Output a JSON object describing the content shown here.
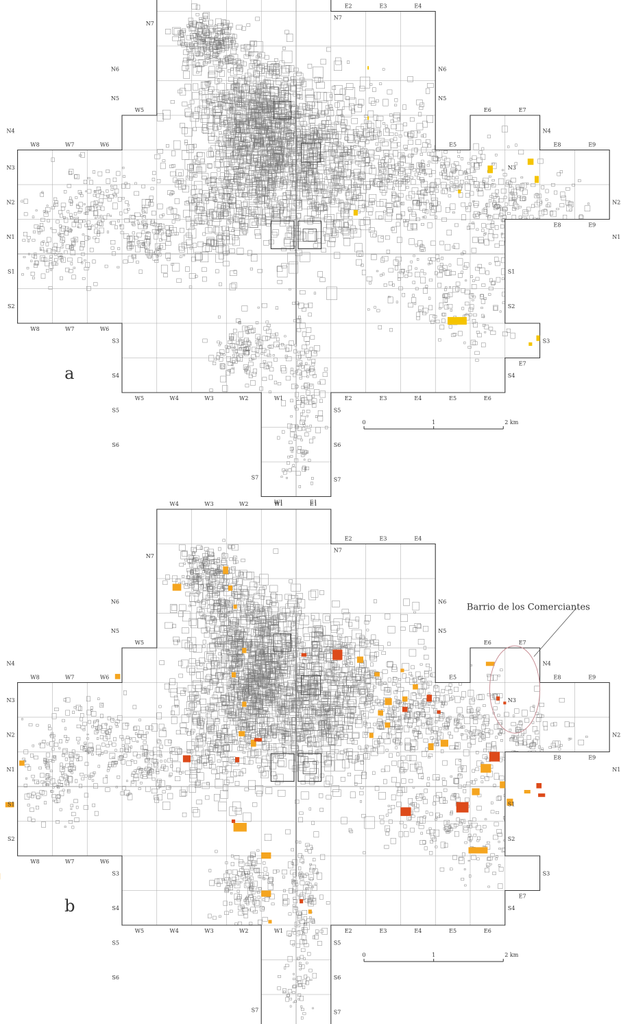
{
  "panels": [
    {
      "id": "a",
      "letter": "a",
      "sites": [
        {
          "x": 2.05,
          "y": 5.42,
          "w": 0.04,
          "h": 0.1,
          "color": "yellow"
        },
        {
          "x": 2.05,
          "y": 3.97,
          "w": 0.04,
          "h": 0.1,
          "color": "yellow"
        },
        {
          "x": 1.65,
          "y": 1.27,
          "w": 0.12,
          "h": 0.16,
          "color": "yellow"
        },
        {
          "x": 5.5,
          "y": 2.55,
          "w": 0.15,
          "h": 0.22,
          "color": "yellow"
        },
        {
          "x": 6.85,
          "y": 2.25,
          "w": 0.12,
          "h": 0.2,
          "color": "yellow"
        },
        {
          "x": 6.65,
          "y": 2.75,
          "w": 0.17,
          "h": 0.18,
          "color": "yellow"
        },
        {
          "x": 4.65,
          "y": 1.85,
          "w": 0.08,
          "h": 0.1,
          "color": "yellow"
        },
        {
          "x": 4.35,
          "y": -1.82,
          "w": 0.55,
          "h": 0.22,
          "color": "yellow"
        },
        {
          "x": 6.9,
          "y": -2.35,
          "w": 0.1,
          "h": 0.16,
          "color": "yellow"
        },
        {
          "x": 6.68,
          "y": -2.55,
          "w": 0.1,
          "h": 0.1,
          "color": "yellow"
        }
      ]
    },
    {
      "id": "b",
      "letter": "b",
      "sites": [
        {
          "x": -8.75,
          "y": -2.5,
          "w": 0.25,
          "h": 0.18,
          "color": "orange"
        },
        {
          "x": -8.35,
          "y": -0.45,
          "w": 0.25,
          "h": 0.15,
          "color": "orange"
        },
        {
          "x": -7.95,
          "y": 0.75,
          "w": 0.15,
          "h": 0.15,
          "color": "orange"
        },
        {
          "x": -5.2,
          "y": 3.25,
          "w": 0.15,
          "h": 0.15,
          "color": "orange"
        },
        {
          "x": -3.55,
          "y": 5.85,
          "w": 0.25,
          "h": 0.2,
          "color": "orange"
        },
        {
          "x": -2.1,
          "y": 6.35,
          "w": 0.15,
          "h": 0.22,
          "color": "orange"
        },
        {
          "x": -1.95,
          "y": 5.8,
          "w": 0.12,
          "h": 0.15,
          "color": "orange"
        },
        {
          "x": -1.8,
          "y": 5.25,
          "w": 0.1,
          "h": 0.12,
          "color": "orange"
        },
        {
          "x": -1.55,
          "y": 4.0,
          "w": 0.12,
          "h": 0.15,
          "color": "orange"
        },
        {
          "x": -1.85,
          "y": 3.3,
          "w": 0.12,
          "h": 0.15,
          "color": "orange"
        },
        {
          "x": -1.55,
          "y": 2.45,
          "w": 0.12,
          "h": 0.15,
          "color": "orange"
        },
        {
          "x": -1.65,
          "y": 1.6,
          "w": 0.18,
          "h": 0.15,
          "color": "orange"
        },
        {
          "x": -1.3,
          "y": 1.35,
          "w": 0.15,
          "h": 0.2,
          "color": "orange"
        },
        {
          "x": -3.25,
          "y": 0.9,
          "w": 0.22,
          "h": 0.2,
          "color": "red"
        },
        {
          "x": -1.75,
          "y": 0.85,
          "w": 0.12,
          "h": 0.15,
          "color": "red"
        },
        {
          "x": -1.2,
          "y": 1.4,
          "w": 0.22,
          "h": 0.1,
          "color": "red"
        },
        {
          "x": -1.8,
          "y": -1.05,
          "w": 0.38,
          "h": 0.25,
          "color": "orange"
        },
        {
          "x": -1.85,
          "y": -0.95,
          "w": 0.1,
          "h": 0.1,
          "color": "red"
        },
        {
          "x": -1.0,
          "y": -1.9,
          "w": 0.28,
          "h": 0.18,
          "color": "orange"
        },
        {
          "x": -1.0,
          "y": -3.0,
          "w": 0.28,
          "h": 0.18,
          "color": "orange"
        },
        {
          "x": 0.1,
          "y": -3.25,
          "w": 0.1,
          "h": 0.12,
          "color": "red"
        },
        {
          "x": 0.35,
          "y": -3.55,
          "w": 0.1,
          "h": 0.12,
          "color": "orange"
        },
        {
          "x": -0.8,
          "y": -3.85,
          "w": 0.1,
          "h": 0.1,
          "color": "orange"
        },
        {
          "x": 1.05,
          "y": 3.95,
          "w": 0.28,
          "h": 0.3,
          "color": "red"
        },
        {
          "x": 0.15,
          "y": 3.85,
          "w": 0.15,
          "h": 0.1,
          "color": "red"
        },
        {
          "x": 1.75,
          "y": 3.75,
          "w": 0.18,
          "h": 0.18,
          "color": "orange"
        },
        {
          "x": 2.25,
          "y": 3.3,
          "w": 0.15,
          "h": 0.12,
          "color": "orange"
        },
        {
          "x": 2.55,
          "y": 2.55,
          "w": 0.2,
          "h": 0.2,
          "color": "orange"
        },
        {
          "x": 2.35,
          "y": 2.2,
          "w": 0.15,
          "h": 0.15,
          "color": "orange"
        },
        {
          "x": 2.55,
          "y": 1.85,
          "w": 0.15,
          "h": 0.15,
          "color": "orange"
        },
        {
          "x": 2.1,
          "y": 1.55,
          "w": 0.12,
          "h": 0.15,
          "color": "orange"
        },
        {
          "x": 3.0,
          "y": 3.4,
          "w": 0.1,
          "h": 0.1,
          "color": "orange"
        },
        {
          "x": 3.05,
          "y": 2.6,
          "w": 0.15,
          "h": 0.15,
          "color": "orange"
        },
        {
          "x": 3.05,
          "y": 2.3,
          "w": 0.15,
          "h": 0.15,
          "color": "red"
        },
        {
          "x": 3.35,
          "y": 2.95,
          "w": 0.15,
          "h": 0.15,
          "color": "orange"
        },
        {
          "x": 3.75,
          "y": 2.65,
          "w": 0.15,
          "h": 0.2,
          "color": "red"
        },
        {
          "x": 4.05,
          "y": 2.2,
          "w": 0.1,
          "h": 0.1,
          "color": "red"
        },
        {
          "x": 4.15,
          "y": 1.35,
          "w": 0.22,
          "h": 0.2,
          "color": "orange"
        },
        {
          "x": 3.8,
          "y": 1.25,
          "w": 0.15,
          "h": 0.2,
          "color": "orange"
        },
        {
          "x": 4.6,
          "y": -0.45,
          "w": 0.35,
          "h": 0.3,
          "color": "red"
        },
        {
          "x": 5.05,
          "y": -0.05,
          "w": 0.22,
          "h": 0.2,
          "color": "orange"
        },
        {
          "x": 3.0,
          "y": -0.6,
          "w": 0.3,
          "h": 0.25,
          "color": "red"
        },
        {
          "x": 4.95,
          "y": -1.75,
          "w": 0.55,
          "h": 0.18,
          "color": "orange"
        },
        {
          "x": 5.3,
          "y": 0.65,
          "w": 0.3,
          "h": 0.25,
          "color": "orange"
        },
        {
          "x": 5.55,
          "y": 1.0,
          "w": 0.3,
          "h": 0.28,
          "color": "red"
        },
        {
          "x": 5.85,
          "y": 0.15,
          "w": 0.15,
          "h": 0.2,
          "color": "orange"
        },
        {
          "x": 6.05,
          "y": -0.35,
          "w": 0.18,
          "h": 0.2,
          "color": "orange"
        },
        {
          "x": 6.55,
          "y": -0.1,
          "w": 0.18,
          "h": 0.1,
          "color": "orange"
        },
        {
          "x": 6.9,
          "y": 0.1,
          "w": 0.15,
          "h": 0.15,
          "color": "red"
        },
        {
          "x": 6.95,
          "y": -0.2,
          "w": 0.2,
          "h": 0.1,
          "color": "red"
        },
        {
          "x": 5.75,
          "y": 2.6,
          "w": 0.1,
          "h": 0.12,
          "color": "red"
        },
        {
          "x": 5.95,
          "y": 2.45,
          "w": 0.08,
          "h": 0.08,
          "color": "red"
        },
        {
          "x": 5.45,
          "y": 3.6,
          "w": 0.25,
          "h": 0.12,
          "color": "orange"
        }
      ],
      "annotation": {
        "label": "Barrio de los Comerciantes",
        "ellipse": {
          "cx": 6.28,
          "cy": 2.8,
          "rx": 0.72,
          "ry": 1.26
        }
      }
    }
  ],
  "grid_labels": {
    "west_cols": [
      "W8",
      "W7",
      "W6",
      "W5",
      "W4",
      "W3",
      "W2",
      "W1"
    ],
    "east_cols": [
      "E1",
      "E2",
      "E3",
      "E4",
      "E5",
      "E6",
      "E7",
      "E8",
      "E9"
    ],
    "north_rows": [
      "N1",
      "N2",
      "N3",
      "N4",
      "N5",
      "N6",
      "N7"
    ],
    "south_rows": [
      "S1",
      "S2",
      "S3",
      "S4",
      "S5",
      "S6",
      "S7"
    ]
  },
  "scale_bar": {
    "labels": [
      "0",
      "1",
      "2 km"
    ]
  },
  "colors": {
    "yellow": "#f5c400",
    "orange": "#f5a51f",
    "red": "#dd4a1a",
    "boundary": "#3a3a3a",
    "gridline": "#a5a5a5",
    "structures": "#7a7a7a"
  }
}
